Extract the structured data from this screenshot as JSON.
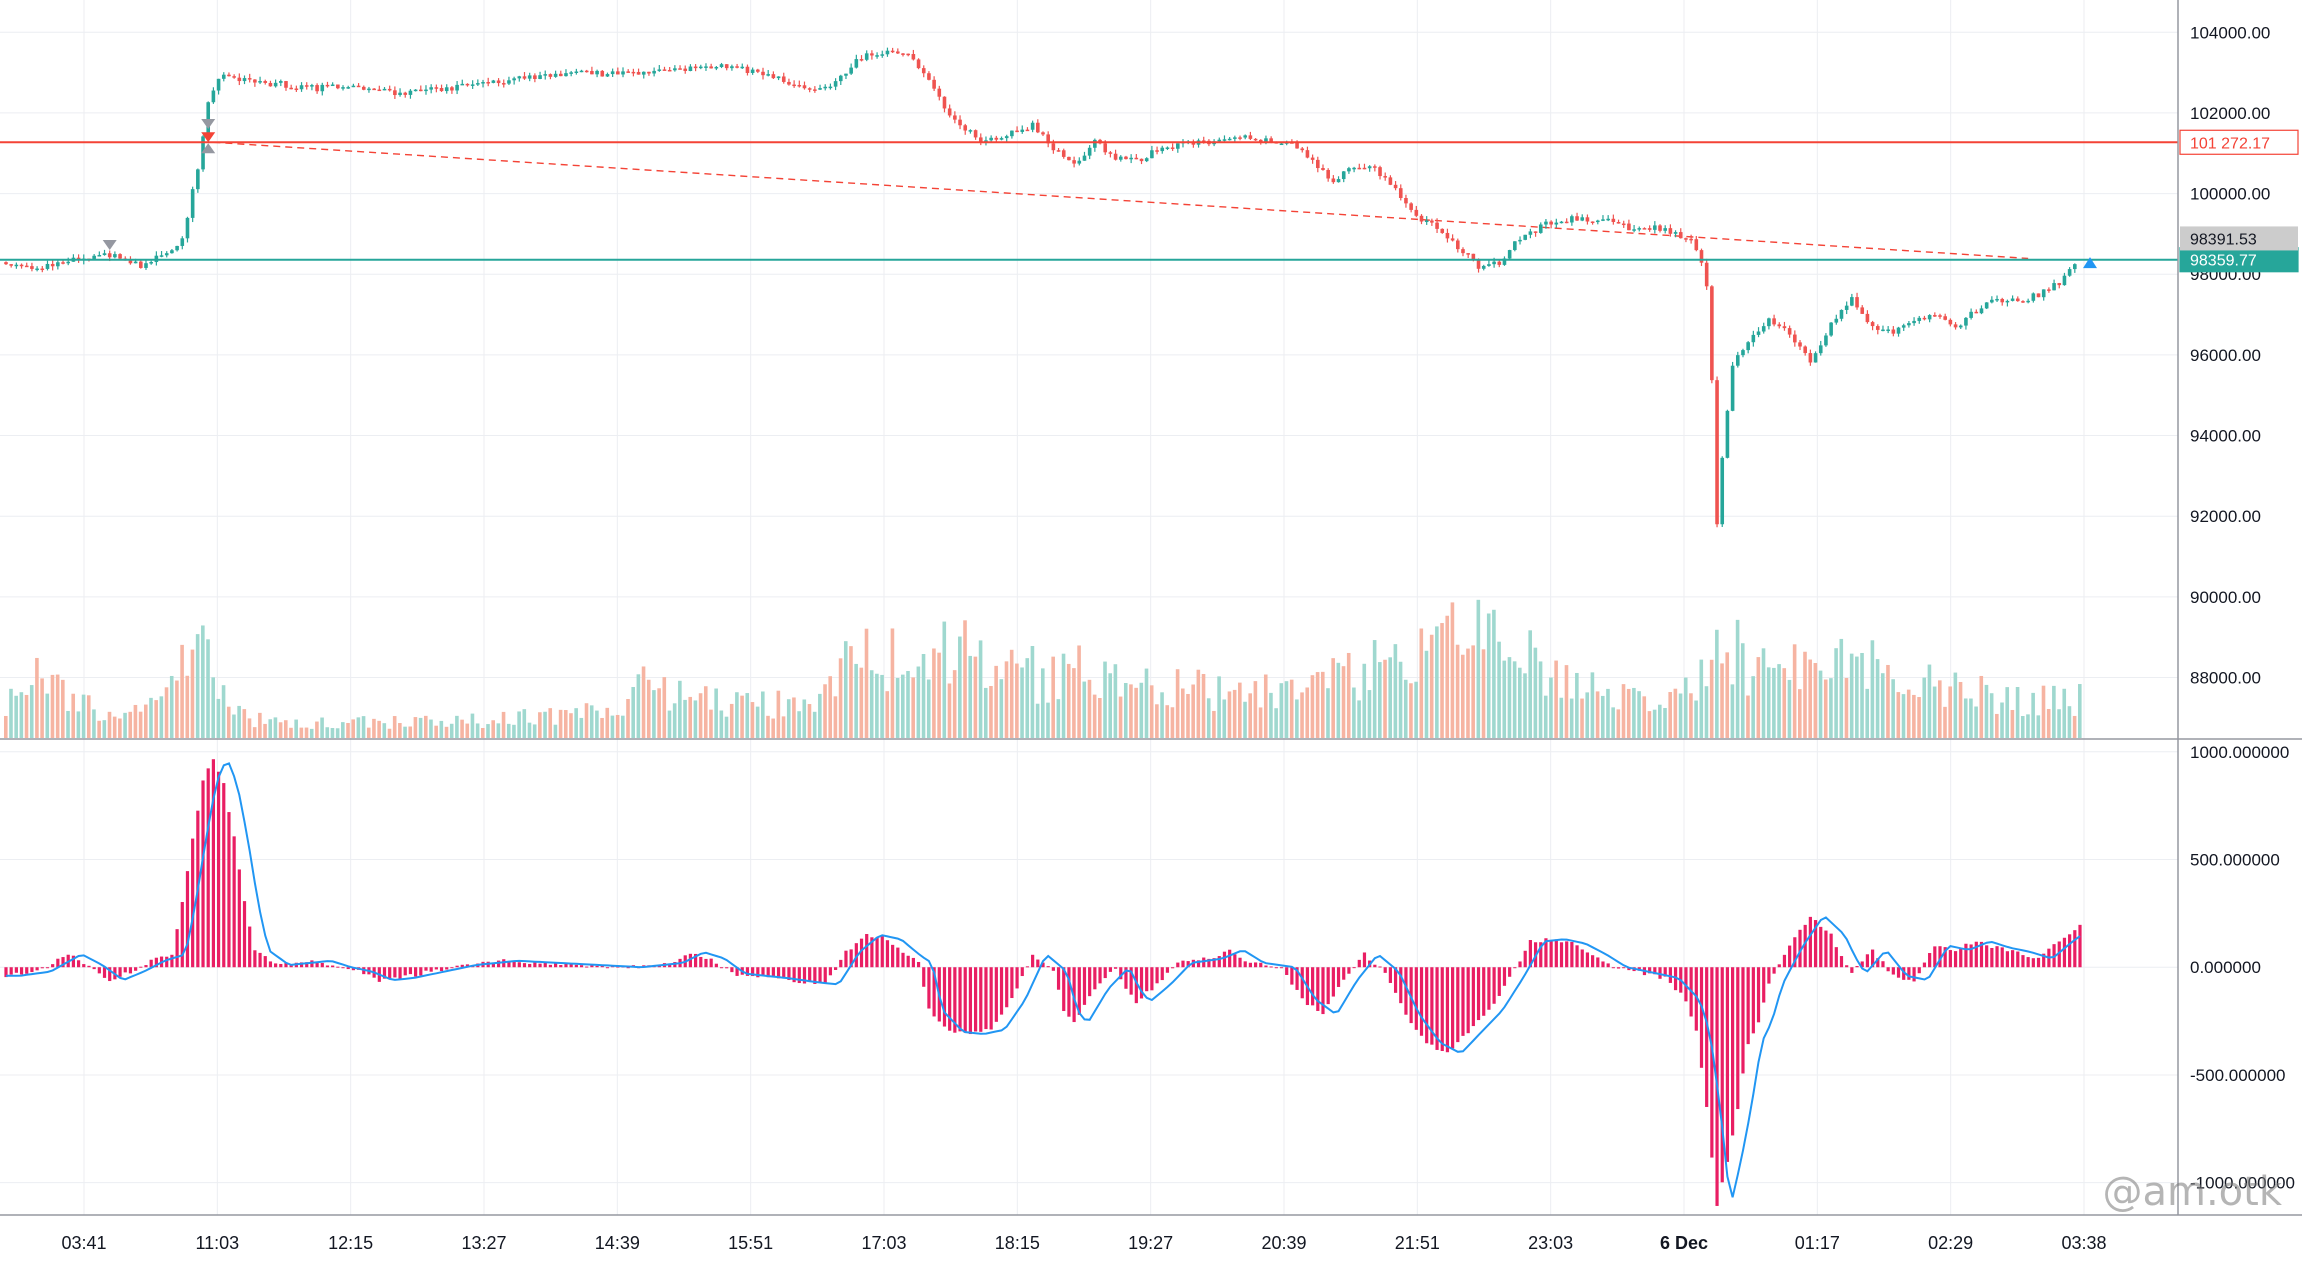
{
  "chart_data": [
    {
      "type": "candlestick",
      "price_scale": {
        "labels": [
          "104000.00",
          "102000.00",
          "100000.00",
          "98000.00",
          "96000.00",
          "94000.00",
          "92000.00",
          "90000.00",
          "88000.00"
        ],
        "ylim": [
          86500,
          104800
        ]
      },
      "time_labels": [
        "03:41",
        "11:03",
        "12:15",
        "13:27",
        "14:39",
        "15:51",
        "17:03",
        "18:15",
        "19:27",
        "20:39",
        "21:51",
        "23:03",
        "6 Dec",
        "01:17",
        "02:29",
        "03:38"
      ],
      "price_path": [
        [
          0,
          98300
        ],
        [
          3,
          98150
        ],
        [
          7,
          98400
        ],
        [
          10,
          98500
        ],
        [
          13,
          98200
        ],
        [
          16,
          98600
        ],
        [
          17,
          98900
        ],
        [
          18.5,
          100600
        ],
        [
          19.5,
          102200
        ],
        [
          20.5,
          102900
        ],
        [
          23,
          102800
        ],
        [
          27,
          102700
        ],
        [
          30,
          102600
        ],
        [
          33,
          102700
        ],
        [
          38,
          102500
        ],
        [
          43,
          102600
        ],
        [
          48,
          102800
        ],
        [
          54,
          103000
        ],
        [
          58,
          102950
        ],
        [
          62,
          103000
        ],
        [
          66,
          103100
        ],
        [
          70,
          103150
        ],
        [
          74,
          102900
        ],
        [
          77,
          102600
        ],
        [
          80,
          102750
        ],
        [
          82,
          103300
        ],
        [
          84,
          103500
        ],
        [
          87,
          103400
        ],
        [
          89,
          102900
        ],
        [
          91,
          101900
        ],
        [
          94,
          101300
        ],
        [
          97,
          101500
        ],
        [
          99,
          101700
        ],
        [
          101,
          101100
        ],
        [
          103,
          100700
        ],
        [
          105,
          101300
        ],
        [
          107,
          100900
        ],
        [
          109,
          100800
        ],
        [
          111,
          101100
        ],
        [
          113,
          101200
        ],
        [
          116,
          101300
        ],
        [
          119,
          101400
        ],
        [
          122,
          101300
        ],
        [
          124,
          101200
        ],
        [
          126,
          100800
        ],
        [
          128,
          100300
        ],
        [
          130,
          100700
        ],
        [
          132,
          100600
        ],
        [
          134,
          100100
        ],
        [
          136,
          99400
        ],
        [
          138,
          99200
        ],
        [
          140,
          98700
        ],
        [
          142,
          98200
        ],
        [
          144,
          98300
        ],
        [
          146,
          98900
        ],
        [
          149,
          99300
        ],
        [
          152,
          99400
        ],
        [
          155,
          99300
        ],
        [
          157,
          99100
        ],
        [
          159,
          99150
        ],
        [
          161,
          99000
        ],
        [
          162.5,
          98800
        ],
        [
          163.5,
          98300
        ],
        [
          164.3,
          97300
        ],
        [
          164.9,
          91500
        ],
        [
          165.5,
          93500
        ],
        [
          166.5,
          95800
        ],
        [
          168,
          96300
        ],
        [
          170,
          96900
        ],
        [
          172,
          96500
        ],
        [
          174,
          95800
        ],
        [
          176,
          96800
        ],
        [
          178,
          97400
        ],
        [
          180,
          96700
        ],
        [
          182,
          96600
        ],
        [
          184,
          96800
        ],
        [
          186,
          97000
        ],
        [
          188,
          96700
        ],
        [
          190,
          97100
        ],
        [
          192,
          97400
        ],
        [
          194,
          97300
        ],
        [
          196,
          97500
        ],
        [
          198,
          97800
        ],
        [
          199.5,
          98300
        ]
      ],
      "volume_profile": [
        [
          0,
          0.25
        ],
        [
          4,
          0.55
        ],
        [
          7,
          0.3
        ],
        [
          10,
          0.2
        ],
        [
          13,
          0.22
        ],
        [
          15,
          0.25
        ],
        [
          16,
          0.4
        ],
        [
          17,
          0.7
        ],
        [
          18,
          0.95
        ],
        [
          19,
          0.85
        ],
        [
          20,
          0.35
        ],
        [
          24,
          0.15
        ],
        [
          30,
          0.12
        ],
        [
          38,
          0.13
        ],
        [
          48,
          0.15
        ],
        [
          56,
          0.2
        ],
        [
          60,
          0.25
        ],
        [
          62,
          0.55
        ],
        [
          64,
          0.35
        ],
        [
          70,
          0.3
        ],
        [
          78,
          0.25
        ],
        [
          81,
          0.55
        ],
        [
          84,
          0.65
        ],
        [
          88,
          0.6
        ],
        [
          92,
          0.7
        ],
        [
          96,
          0.55
        ],
        [
          100,
          0.5
        ],
        [
          104,
          0.55
        ],
        [
          108,
          0.45
        ],
        [
          114,
          0.4
        ],
        [
          120,
          0.35
        ],
        [
          126,
          0.4
        ],
        [
          130,
          0.5
        ],
        [
          134,
          0.6
        ],
        [
          137,
          0.8
        ],
        [
          140,
          0.85
        ],
        [
          144,
          0.75
        ],
        [
          148,
          0.55
        ],
        [
          154,
          0.4
        ],
        [
          160,
          0.35
        ],
        [
          163,
          0.45
        ],
        [
          165,
          0.8
        ],
        [
          168,
          0.6
        ],
        [
          172,
          0.55
        ],
        [
          176,
          0.6
        ],
        [
          180,
          0.55
        ],
        [
          184,
          0.45
        ],
        [
          188,
          0.4
        ],
        [
          192,
          0.35
        ],
        [
          196,
          0.3
        ],
        [
          200,
          0.3
        ]
      ],
      "horizontal_lines": [
        {
          "label": "101 272.17",
          "value": 101272.17,
          "color": "#f44336",
          "style": "solid"
        },
        {
          "label": "98359.77",
          "value": 98359.77,
          "color": "#26a69a",
          "style": "solid"
        }
      ],
      "extra_labels": [
        {
          "label": "98391.53",
          "value": 98391.53,
          "color": "#cccccc"
        }
      ],
      "trend_line": {
        "from": [
          20,
          101272.17
        ],
        "to": [
          195,
          98391.53
        ],
        "color": "#f44336",
        "style": "dashed"
      },
      "up_color": "#26a69a",
      "down_color": "#ef5350",
      "volume_up_color": "#9fd8cf",
      "volume_down_color": "#f6b4a2"
    },
    {
      "type": "bar",
      "indicator": true,
      "scale": {
        "labels": [
          "1000.000000",
          "500.000000",
          "0.000000",
          "-500.000000",
          "-1000.000000"
        ],
        "ylim": [
          -1150,
          1050
        ]
      },
      "histogram_path": [
        [
          0,
          -40
        ],
        [
          3,
          -20
        ],
        [
          6,
          60
        ],
        [
          8,
          10
        ],
        [
          10,
          -60
        ],
        [
          12,
          -20
        ],
        [
          14,
          30
        ],
        [
          16,
          60
        ],
        [
          17,
          300
        ],
        [
          18,
          600
        ],
        [
          19,
          860
        ],
        [
          20,
          970
        ],
        [
          21,
          850
        ],
        [
          22,
          600
        ],
        [
          23,
          300
        ],
        [
          24,
          80
        ],
        [
          26,
          10
        ],
        [
          28,
          20
        ],
        [
          30,
          30
        ],
        [
          32,
          0
        ],
        [
          34,
          -20
        ],
        [
          36,
          -60
        ],
        [
          38,
          -50
        ],
        [
          40,
          -30
        ],
        [
          44,
          10
        ],
        [
          48,
          30
        ],
        [
          52,
          20
        ],
        [
          56,
          10
        ],
        [
          60,
          0
        ],
        [
          64,
          20
        ],
        [
          66,
          70
        ],
        [
          68,
          40
        ],
        [
          70,
          -30
        ],
        [
          74,
          -50
        ],
        [
          77,
          -70
        ],
        [
          79,
          -80
        ],
        [
          81,
          70
        ],
        [
          83,
          150
        ],
        [
          85,
          130
        ],
        [
          87,
          50
        ],
        [
          88,
          20
        ],
        [
          89,
          -200
        ],
        [
          91,
          -300
        ],
        [
          93,
          -310
        ],
        [
          95,
          -290
        ],
        [
          97,
          -150
        ],
        [
          99,
          60
        ],
        [
          101,
          -20
        ],
        [
          102,
          -200
        ],
        [
          103,
          -260
        ],
        [
          105,
          -100
        ],
        [
          107,
          0
        ],
        [
          108,
          -100
        ],
        [
          109,
          -160
        ],
        [
          111,
          -80
        ],
        [
          113,
          20
        ],
        [
          116,
          40
        ],
        [
          118,
          80
        ],
        [
          120,
          20
        ],
        [
          123,
          0
        ],
        [
          125,
          -150
        ],
        [
          127,
          -220
        ],
        [
          129,
          -60
        ],
        [
          131,
          60
        ],
        [
          133,
          -20
        ],
        [
          135,
          -220
        ],
        [
          137,
          -350
        ],
        [
          139,
          -400
        ],
        [
          141,
          -300
        ],
        [
          143,
          -200
        ],
        [
          145,
          -50
        ],
        [
          147,
          120
        ],
        [
          149,
          130
        ],
        [
          151,
          110
        ],
        [
          153,
          60
        ],
        [
          155,
          0
        ],
        [
          157,
          -20
        ],
        [
          160,
          -50
        ],
        [
          162,
          -150
        ],
        [
          163,
          -300
        ],
        [
          164,
          -650
        ],
        [
          165,
          -1110
        ],
        [
          166,
          -900
        ],
        [
          167,
          -650
        ],
        [
          168,
          -350
        ],
        [
          169,
          -250
        ],
        [
          170,
          -80
        ],
        [
          172,
          100
        ],
        [
          174,
          240
        ],
        [
          176,
          150
        ],
        [
          177,
          50
        ],
        [
          178,
          -30
        ],
        [
          180,
          80
        ],
        [
          182,
          -40
        ],
        [
          184,
          -60
        ],
        [
          186,
          100
        ],
        [
          188,
          80
        ],
        [
          190,
          120
        ],
        [
          192,
          90
        ],
        [
          194,
          70
        ],
        [
          196,
          40
        ],
        [
          198,
          120
        ],
        [
          200,
          190
        ]
      ],
      "signal_lag": 1.3,
      "histogram_color": "#e91e63",
      "signal_color": "#2196f3"
    }
  ],
  "watermark": "@am.otk"
}
